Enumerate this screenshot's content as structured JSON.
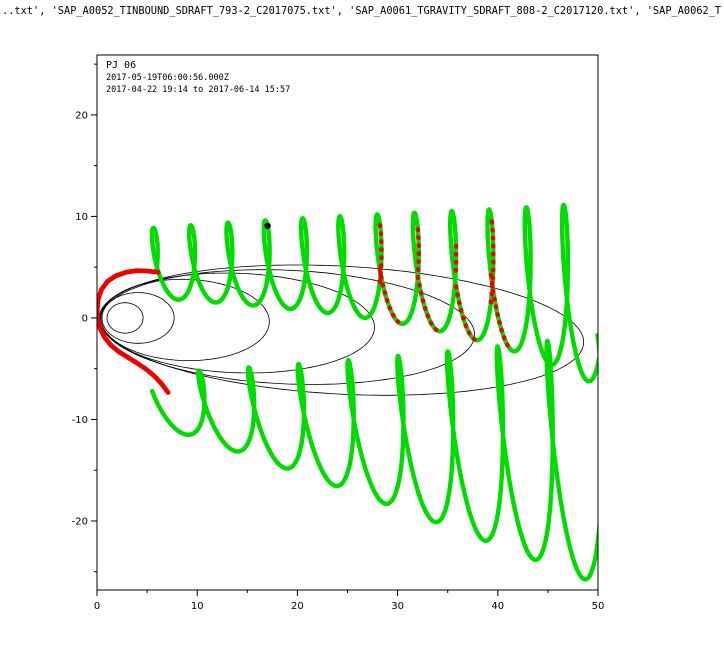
{
  "figure": {
    "title": "..txt', 'SAP_A0052_TINBOUND_SDRAFT_793-2_C2017075.txt', 'SAP_A0061_TGRAVITY_SDRAFT_808-2_C2017120.txt', 'SAP_A0062_T"
  },
  "chart_data": {
    "type": "line",
    "title": "..txt', 'SAP_A0052_TINBOUND_SDRAFT_793-2_C2017075.txt', 'SAP_A0061_TGRAVITY_SDRAFT_808-2_C2017120.txt', 'SAP_A0062_T",
    "xlabel": "",
    "ylabel": "",
    "xlim": [
      0,
      50
    ],
    "ylim": [
      -26.8,
      25.9
    ],
    "x_ticks": [
      0,
      10,
      20,
      30,
      40,
      50
    ],
    "y_ticks": [
      -20,
      -10,
      0,
      10,
      20
    ],
    "x_subtick_step": 5,
    "y_subtick_step": 5,
    "grid": false,
    "legend": null,
    "annotations": {
      "perijove_label": "PJ 06",
      "epoch": "2017-05-19T06:00:56.000Z",
      "time_range": "2017-04-22 19:14 to 2017-06-14 15:57"
    },
    "colors": {
      "trajectory": "#00db00",
      "highlight": "#ee0000",
      "contours": "#000000",
      "marker": "#000000",
      "axis": "#000000",
      "background": "#ffffff"
    },
    "series": [
      {
        "name": "trajectory-upper-band",
        "kind": "generated-oscillation",
        "color_key": "trajectory",
        "width": 4.4,
        "x0": 4.9,
        "x1": 50.3,
        "cycles": 12.2,
        "phase0": -0.2,
        "wobble": 1.05,
        "wobble_phase": 0.3,
        "mid": {
          "base": 5.4,
          "lin": 0,
          "cub": -3.2
        },
        "amp": {
          "base": 3.4,
          "lin": 3.2,
          "quad": 0,
          "quart": 2.6
        },
        "samples": 1600
      },
      {
        "name": "trajectory-lower-band",
        "kind": "generated-oscillation",
        "color_key": "trajectory",
        "width": 4.4,
        "x0": 6.8,
        "x1": 50.5,
        "cycles": 8.8,
        "phase0": 2.78,
        "wobble": 1.3,
        "wobble_phase": 0.5,
        "mid": {
          "base": -8.2,
          "lin": -6.0,
          "cub": 0
        },
        "amp": {
          "base": 2.8,
          "lin": 8.2,
          "quad": 1.5,
          "quart": 0
        },
        "samples": 1400
      }
    ],
    "perijove_track": {
      "name": "perijove-highlight",
      "color_key": "highlight",
      "width": 4.8,
      "points": [
        [
          6.1,
          4.5
        ],
        [
          5.0,
          4.62
        ],
        [
          3.9,
          4.65
        ],
        [
          2.9,
          4.5
        ],
        [
          1.9,
          4.15
        ],
        [
          1.05,
          3.6
        ],
        [
          0.45,
          2.8
        ],
        [
          0.12,
          1.85
        ],
        [
          0.02,
          0.9
        ],
        [
          0.05,
          -0.05
        ],
        [
          0.3,
          -1.0
        ],
        [
          0.75,
          -1.9
        ],
        [
          1.4,
          -2.7
        ],
        [
          2.2,
          -3.35
        ],
        [
          3.1,
          -3.9
        ],
        [
          4.0,
          -4.45
        ],
        [
          4.9,
          -5.05
        ],
        [
          5.75,
          -5.75
        ],
        [
          6.5,
          -6.55
        ],
        [
          7.1,
          -7.35
        ]
      ]
    },
    "red_dotted_xranges": [
      [
        28.2,
        30.3
      ],
      [
        32.0,
        34.3
      ],
      [
        35.8,
        38.3
      ],
      [
        39.3,
        41.2
      ]
    ],
    "field_line_contours": [
      {
        "cx": 2.8,
        "cy": 0,
        "rx": 1.8,
        "ry": 1.5,
        "rot": 0
      },
      {
        "cx": 4.1,
        "cy": 0,
        "rx": 3.6,
        "ry": 2.5,
        "rot": 0
      },
      {
        "cx": 8.8,
        "cy": -0.2,
        "rx": 8.4,
        "ry": 4.0,
        "rot": -1.5
      },
      {
        "cx": 14.0,
        "cy": -0.5,
        "rx": 13.7,
        "ry": 4.9,
        "rot": -2
      },
      {
        "cx": 19.0,
        "cy": -0.9,
        "rx": 18.7,
        "ry": 5.6,
        "rot": -2.5
      },
      {
        "cx": 24.4,
        "cy": -1.2,
        "rx": 24.2,
        "ry": 6.3,
        "rot": -3
      }
    ],
    "event_marker": {
      "x": 18.4,
      "y": 9.3,
      "r": 3.2
    }
  }
}
